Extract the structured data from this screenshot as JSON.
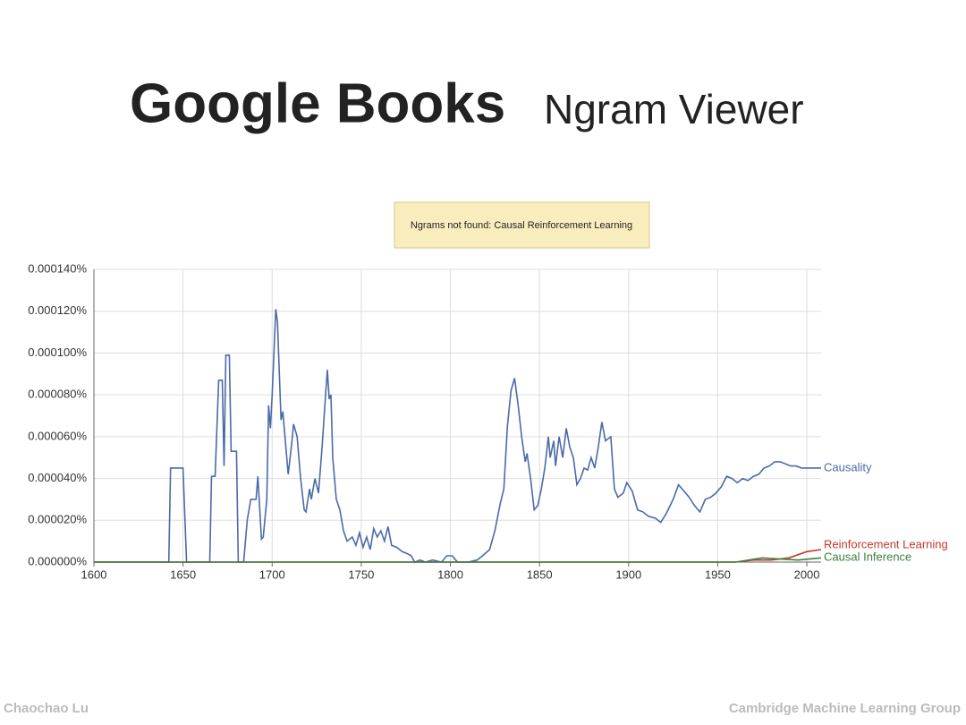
{
  "header": {
    "title": "Google Books",
    "subtitle": "Ngram Viewer"
  },
  "notice": "Ngrams not found: Causal Reinforcement Learning",
  "chart_data": {
    "type": "line",
    "xlim": [
      1600,
      2008
    ],
    "xticks": [
      1600,
      1650,
      1700,
      1750,
      1800,
      1850,
      1900,
      1950,
      2000
    ],
    "ylim": [
      0,
      0.00014
    ],
    "yticks": [
      {
        "value": 0,
        "label": "0.000000%"
      },
      {
        "value": 2e-05,
        "label": "0.000020%"
      },
      {
        "value": 4e-05,
        "label": "0.000040%"
      },
      {
        "value": 6e-05,
        "label": "0.000060%"
      },
      {
        "value": 8e-05,
        "label": "0.000080%"
      },
      {
        "value": 0.0001,
        "label": "0.000100%"
      },
      {
        "value": 0.00012,
        "label": "0.000120%"
      },
      {
        "value": 0.00014,
        "label": "0.000140%"
      }
    ],
    "grid": true,
    "series": [
      {
        "name": "Causality",
        "color": "#4b6aa8",
        "x": [
          1600,
          1642,
          1643,
          1650,
          1652,
          1665,
          1666,
          1668,
          1670,
          1672,
          1673,
          1674,
          1676,
          1677,
          1680,
          1681,
          1684,
          1686,
          1688,
          1691,
          1692,
          1694,
          1695,
          1697,
          1698,
          1699,
          1700,
          1702,
          1703,
          1705,
          1706,
          1708,
          1709,
          1711,
          1712,
          1714,
          1716,
          1718,
          1719,
          1721,
          1722,
          1724,
          1726,
          1728,
          1730,
          1731,
          1732,
          1733,
          1734,
          1736,
          1738,
          1740,
          1742,
          1745,
          1747,
          1749,
          1751,
          1753,
          1755,
          1757,
          1759,
          1761,
          1763,
          1765,
          1767,
          1770,
          1773,
          1776,
          1778,
          1780,
          1783,
          1786,
          1790,
          1795,
          1798,
          1801,
          1804,
          1810,
          1815,
          1818,
          1822,
          1825,
          1828,
          1830,
          1832,
          1834,
          1836,
          1838,
          1840,
          1842,
          1843,
          1845,
          1847,
          1849,
          1851,
          1853,
          1855,
          1856,
          1858,
          1859,
          1861,
          1863,
          1865,
          1867,
          1869,
          1871,
          1873,
          1875,
          1877,
          1879,
          1881,
          1883,
          1885,
          1887,
          1890,
          1892,
          1894,
          1897,
          1899,
          1902,
          1905,
          1908,
          1911,
          1915,
          1918,
          1921,
          1925,
          1928,
          1931,
          1934,
          1937,
          1940,
          1943,
          1946,
          1949,
          1952,
          1955,
          1958,
          1961,
          1964,
          1967,
          1970,
          1973,
          1976,
          1979,
          1982,
          1985,
          1988,
          1991,
          1994,
          1997,
          2000,
          2003,
          2008
        ],
        "values": [
          0,
          0,
          4.5e-05,
          4.5e-05,
          0,
          0,
          4.1e-05,
          4.1e-05,
          8.7e-05,
          8.7e-05,
          4.6e-05,
          9.9e-05,
          9.9e-05,
          5.3e-05,
          5.3e-05,
          0,
          0,
          2e-05,
          3e-05,
          3e-05,
          4.1e-05,
          1.1e-05,
          1.2e-05,
          3e-05,
          7.5e-05,
          6.4e-05,
          8e-05,
          0.000121,
          0.000115,
          6.8e-05,
          7.2e-05,
          5.2e-05,
          4.2e-05,
          5.7e-05,
          6.6e-05,
          6e-05,
          4e-05,
          2.5e-05,
          2.4e-05,
          3.5e-05,
          3e-05,
          4e-05,
          3.3e-05,
          5.5e-05,
          8e-05,
          9.2e-05,
          7.8e-05,
          8e-05,
          5e-05,
          3e-05,
          2.5e-05,
          1.5e-05,
          1e-05,
          1.2e-05,
          8e-06,
          1.4e-05,
          7e-06,
          1.2e-05,
          6e-06,
          1.6e-05,
          1.2e-05,
          1.5e-05,
          1e-05,
          1.7e-05,
          8e-06,
          7e-06,
          5e-06,
          4e-06,
          3e-06,
          0,
          1e-06,
          0,
          1e-06,
          0,
          3e-06,
          3e-06,
          0,
          0,
          1e-06,
          3e-06,
          6e-06,
          1.5e-05,
          2.8e-05,
          3.5e-05,
          6.5e-05,
          8.2e-05,
          8.8e-05,
          7.5e-05,
          6e-05,
          4.8e-05,
          5.2e-05,
          4e-05,
          2.5e-05,
          2.7e-05,
          3.5e-05,
          4.5e-05,
          6e-05,
          5e-05,
          5.8e-05,
          4.6e-05,
          6e-05,
          5e-05,
          6.4e-05,
          5.5e-05,
          5e-05,
          3.7e-05,
          4e-05,
          4.5e-05,
          4.4e-05,
          5e-05,
          4.5e-05,
          5.5e-05,
          6.7e-05,
          5.8e-05,
          6e-05,
          3.5e-05,
          3.1e-05,
          3.3e-05,
          3.8e-05,
          3.4e-05,
          2.5e-05,
          2.4e-05,
          2.2e-05,
          2.1e-05,
          1.9e-05,
          2.3e-05,
          3e-05,
          3.7e-05,
          3.4e-05,
          3.1e-05,
          2.7e-05,
          2.4e-05,
          3e-05,
          3.1e-05,
          3.3e-05,
          3.6e-05,
          4.1e-05,
          4e-05,
          3.8e-05,
          4e-05,
          3.9e-05,
          4.1e-05,
          4.2e-05,
          4.5e-05,
          4.6e-05,
          4.8e-05,
          4.8e-05,
          4.7e-05,
          4.6e-05,
          4.6e-05,
          4.5e-05,
          4.5e-05,
          4.5e-05,
          4.5e-05
        ]
      },
      {
        "name": "Reinforcement Learning",
        "color": "#c0392b",
        "x": [
          1600,
          1960,
          1970,
          1980,
          1990,
          2000,
          2008
        ],
        "values": [
          0,
          0,
          1e-06,
          1e-06,
          2e-06,
          5e-06,
          6e-06
        ]
      },
      {
        "name": "Causal Inference",
        "color": "#3f7f3f",
        "x": [
          1600,
          1960,
          1975,
          1985,
          1995,
          2008
        ],
        "values": [
          0,
          0,
          2e-06,
          1.5e-06,
          1e-06,
          2e-06
        ]
      }
    ]
  },
  "footer": {
    "left": "Chaochao Lu",
    "right": "Cambridge Machine Learning Group"
  }
}
